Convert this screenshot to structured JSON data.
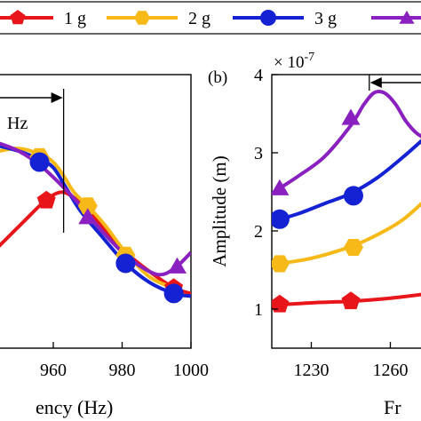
{
  "legend": {
    "placement": "top",
    "entries": [
      {
        "name": "1 g",
        "color": "#e8151b",
        "marker": "pentagon"
      },
      {
        "name": "2 g",
        "color": "#f6b918",
        "marker": "hexagon"
      },
      {
        "name": "3 g",
        "color": "#1422d4",
        "marker": "circle"
      },
      {
        "name": "",
        "color": "#8a20c0",
        "marker": "triangle"
      }
    ]
  },
  "chart_data": [
    {
      "type": "line",
      "panel_label": "",
      "xlabel": "ency (Hz)",
      "ylabel": "",
      "xlim": [
        944,
        1000
      ],
      "ylim": [
        0,
        1
      ],
      "xticks": [
        960,
        980,
        1000
      ],
      "annotation": {
        "text": "Hz",
        "x": 963
      },
      "series": [
        {
          "name": "1 g",
          "color": "#e8151b",
          "marker": "pentagon",
          "x": [
            944,
            948,
            952,
            956,
            960,
            963,
            966,
            970,
            975,
            981,
            988,
            995,
            1000
          ],
          "y": [
            0.37,
            0.42,
            0.47,
            0.52,
            0.56,
            0.57,
            0.55,
            0.51,
            0.43,
            0.35,
            0.28,
            0.22,
            0.2
          ],
          "mx": [
            958,
            995
          ],
          "my": [
            0.54,
            0.22
          ]
        },
        {
          "name": "2 g",
          "color": "#f6b918",
          "marker": "hexagon",
          "x": [
            944,
            950,
            956,
            960,
            963,
            966,
            970,
            975,
            981,
            988,
            995
          ],
          "y": [
            0.72,
            0.73,
            0.71,
            0.68,
            0.63,
            0.57,
            0.52,
            0.45,
            0.35,
            0.26,
            0.22
          ],
          "mx": [
            956,
            970,
            981
          ],
          "my": [
            0.7,
            0.52,
            0.34
          ]
        },
        {
          "name": "3 g",
          "color": "#1422d4",
          "marker": "circle",
          "x": [
            944,
            950,
            956,
            960,
            964,
            968,
            974,
            981,
            988,
            995,
            1000
          ],
          "y": [
            0.74,
            0.72,
            0.69,
            0.66,
            0.58,
            0.5,
            0.41,
            0.31,
            0.24,
            0.2,
            0.19
          ],
          "mx": [
            956,
            981,
            995
          ],
          "my": [
            0.68,
            0.31,
            0.2
          ]
        },
        {
          "name": "",
          "color": "#8a20c0",
          "marker": "triangle",
          "x": [
            944,
            950,
            956,
            962,
            968,
            974,
            981,
            988,
            992,
            996,
            1000
          ],
          "y": [
            0.75,
            0.72,
            0.67,
            0.6,
            0.52,
            0.43,
            0.34,
            0.28,
            0.27,
            0.3,
            0.35
          ],
          "mx": [
            970,
            996
          ],
          "my": [
            0.48,
            0.3
          ]
        }
      ]
    },
    {
      "type": "line",
      "panel_label": "(b)",
      "exponent_label": "× 10",
      "exponent_power": "-7",
      "xlabel": "Fr",
      "ylabel": "Amplitude (m)",
      "xlim": [
        1215,
        1275
      ],
      "ylim": [
        0.5,
        4
      ],
      "xticks": [
        1230,
        1260
      ],
      "yticks": [
        1,
        2,
        3,
        4
      ],
      "annotation": {
        "x": 1252
      },
      "series": [
        {
          "name": "1 g",
          "color": "#e8151b",
          "marker": "pentagon",
          "x": [
            1215,
            1230,
            1245,
            1260,
            1275
          ],
          "y": [
            1.05,
            1.08,
            1.1,
            1.14,
            1.2
          ],
          "mx": [
            1218,
            1245
          ],
          "my": [
            1.06,
            1.1
          ]
        },
        {
          "name": "2 g",
          "color": "#f6b918",
          "marker": "hexagon",
          "x": [
            1215,
            1230,
            1245,
            1255,
            1265,
            1275
          ],
          "y": [
            1.57,
            1.65,
            1.8,
            1.95,
            2.15,
            2.45
          ],
          "mx": [
            1218,
            1246
          ],
          "my": [
            1.58,
            1.79
          ]
        },
        {
          "name": "3 g",
          "color": "#1422d4",
          "marker": "circle",
          "x": [
            1215,
            1225,
            1235,
            1245,
            1255,
            1265,
            1275
          ],
          "y": [
            2.12,
            2.22,
            2.35,
            2.48,
            2.68,
            2.95,
            3.25
          ],
          "mx": [
            1218,
            1246
          ],
          "my": [
            2.15,
            2.45
          ]
        },
        {
          "name": "",
          "color": "#8a20c0",
          "marker": "triangle",
          "x": [
            1215,
            1225,
            1235,
            1245,
            1250,
            1254,
            1258,
            1262,
            1266,
            1270,
            1275
          ],
          "y": [
            2.48,
            2.7,
            2.95,
            3.35,
            3.62,
            3.77,
            3.76,
            3.62,
            3.4,
            3.25,
            3.15
          ],
          "mx": [
            1218,
            1245
          ],
          "my": [
            2.55,
            3.45
          ]
        }
      ]
    }
  ]
}
